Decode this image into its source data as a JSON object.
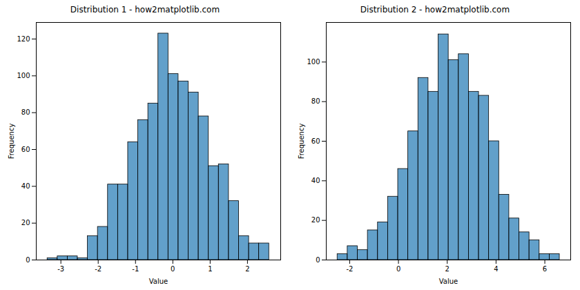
{
  "chart_data": [
    {
      "type": "histogram",
      "title": "Distribution 1 - how2matplotlib.com",
      "x_label": "Value",
      "y_label": "Frequency",
      "bins": [
        -3.36,
        -3.09,
        -2.82,
        -2.55,
        -2.28,
        -2.01,
        -1.74,
        -1.47,
        -1.2,
        -0.93,
        -0.66,
        -0.39,
        -0.12,
        0.15,
        0.42,
        0.69,
        0.96,
        1.23,
        1.5,
        1.77,
        2.04,
        2.31,
        2.58
      ],
      "values": [
        1,
        2,
        2,
        1,
        13,
        18,
        41,
        41,
        64,
        76,
        85,
        123,
        101,
        97,
        91,
        78,
        51,
        52,
        32,
        13,
        9,
        9
      ],
      "color": "#1f77b4",
      "xlim": [
        -3.66,
        2.89
      ],
      "xticks": [
        -3,
        -2,
        -1,
        0,
        1,
        2
      ],
      "ylim": [
        0,
        129
      ],
      "yticks": [
        0,
        20,
        40,
        60,
        80,
        100,
        120
      ]
    },
    {
      "type": "histogram",
      "title": "Distribution 2 - how2matplotlib.com",
      "x_label": "Value",
      "y_label": "Frequency",
      "bins": [
        -2.5,
        -2.086,
        -1.672,
        -1.258,
        -0.844,
        -0.43,
        -0.016,
        0.398,
        0.812,
        1.226,
        1.64,
        2.054,
        2.468,
        2.882,
        3.296,
        3.71,
        4.124,
        4.538,
        4.952,
        5.366,
        5.78,
        6.194,
        6.608
      ],
      "values": [
        3,
        7,
        5,
        15,
        19,
        32,
        46,
        65,
        92,
        85,
        114,
        101,
        104,
        85,
        83,
        60,
        33,
        21,
        14,
        10,
        3,
        3
      ],
      "color": "#1f77b4",
      "xlim": [
        -2.96,
        7.06
      ],
      "xticks": [
        -2,
        0,
        2,
        4,
        6
      ],
      "ylim": [
        0,
        120
      ],
      "yticks": [
        0,
        20,
        40,
        60,
        80,
        100
      ]
    }
  ]
}
